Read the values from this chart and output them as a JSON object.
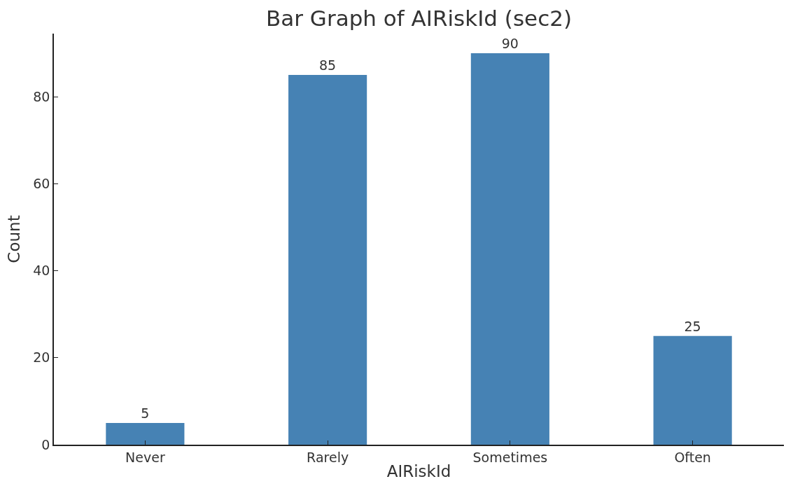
{
  "chart_data": {
    "type": "bar",
    "title": "Bar Graph of AIRiskId (sec2)",
    "xlabel": "AIRiskId",
    "ylabel": "Count",
    "categories": [
      "Never",
      "Rarely",
      "Sometimes",
      "Often"
    ],
    "values": [
      5,
      85,
      90,
      25
    ],
    "color": "#4682b4",
    "ylim": [
      0,
      94.5
    ],
    "yticks": [
      0,
      20,
      40,
      60,
      80
    ],
    "data_labels": true
  }
}
